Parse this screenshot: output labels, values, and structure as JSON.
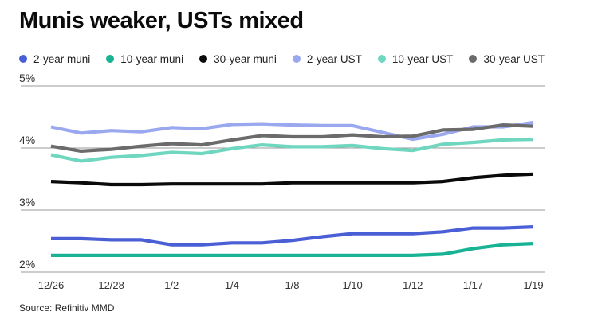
{
  "chart_data": {
    "type": "line",
    "title": "Munis weaker, USTs mixed",
    "source": "Source: Refinitiv MMD",
    "xlabel": "",
    "ylabel": "",
    "ylim": [
      2,
      5
    ],
    "yticks": [
      "2%",
      "3%",
      "4%",
      "5%"
    ],
    "ytick_values": [
      2,
      3,
      4,
      5
    ],
    "x_count": 17,
    "x_tick_labels": [
      {
        "index": 0,
        "label": "12/26"
      },
      {
        "index": 2,
        "label": "12/28"
      },
      {
        "index": 4,
        "label": "1/2"
      },
      {
        "index": 6,
        "label": "1/4"
      },
      {
        "index": 8,
        "label": "1/8"
      },
      {
        "index": 10,
        "label": "1/10"
      },
      {
        "index": 12,
        "label": "1/12"
      },
      {
        "index": 14,
        "label": "1/17"
      },
      {
        "index": 16,
        "label": "1/19"
      }
    ],
    "series": [
      {
        "name": "2-year muni",
        "color": "#4a5fd6",
        "values": [
          2.54,
          2.54,
          2.52,
          2.52,
          2.44,
          2.44,
          2.47,
          2.47,
          2.51,
          2.57,
          2.62,
          2.62,
          2.62,
          2.65,
          2.71,
          2.71,
          2.73
        ]
      },
      {
        "name": "10-year muni",
        "color": "#17b394",
        "values": [
          2.27,
          2.27,
          2.27,
          2.27,
          2.27,
          2.27,
          2.27,
          2.27,
          2.27,
          2.27,
          2.27,
          2.27,
          2.27,
          2.29,
          2.38,
          2.44,
          2.46
        ]
      },
      {
        "name": "30-year muni",
        "color": "#0a0a0a",
        "values": [
          3.46,
          3.44,
          3.41,
          3.41,
          3.42,
          3.42,
          3.42,
          3.42,
          3.44,
          3.44,
          3.44,
          3.44,
          3.44,
          3.46,
          3.52,
          3.56,
          3.58
        ]
      },
      {
        "name": "2-year UST",
        "color": "#9aa8ef",
        "values": [
          4.34,
          4.24,
          4.28,
          4.26,
          4.33,
          4.31,
          4.38,
          4.39,
          4.37,
          4.36,
          4.36,
          4.25,
          4.14,
          4.22,
          4.34,
          4.34,
          4.41
        ]
      },
      {
        "name": "10-year UST",
        "color": "#6fd6bf",
        "values": [
          3.89,
          3.79,
          3.85,
          3.88,
          3.93,
          3.91,
          3.99,
          4.05,
          4.02,
          4.02,
          4.04,
          3.99,
          3.96,
          4.06,
          4.09,
          4.13,
          4.14
        ]
      },
      {
        "name": "30-year UST",
        "color": "#6b6b6b",
        "values": [
          4.03,
          3.95,
          3.98,
          4.03,
          4.07,
          4.05,
          4.13,
          4.2,
          4.18,
          4.18,
          4.21,
          4.18,
          4.19,
          4.29,
          4.3,
          4.37,
          4.35
        ]
      }
    ]
  }
}
